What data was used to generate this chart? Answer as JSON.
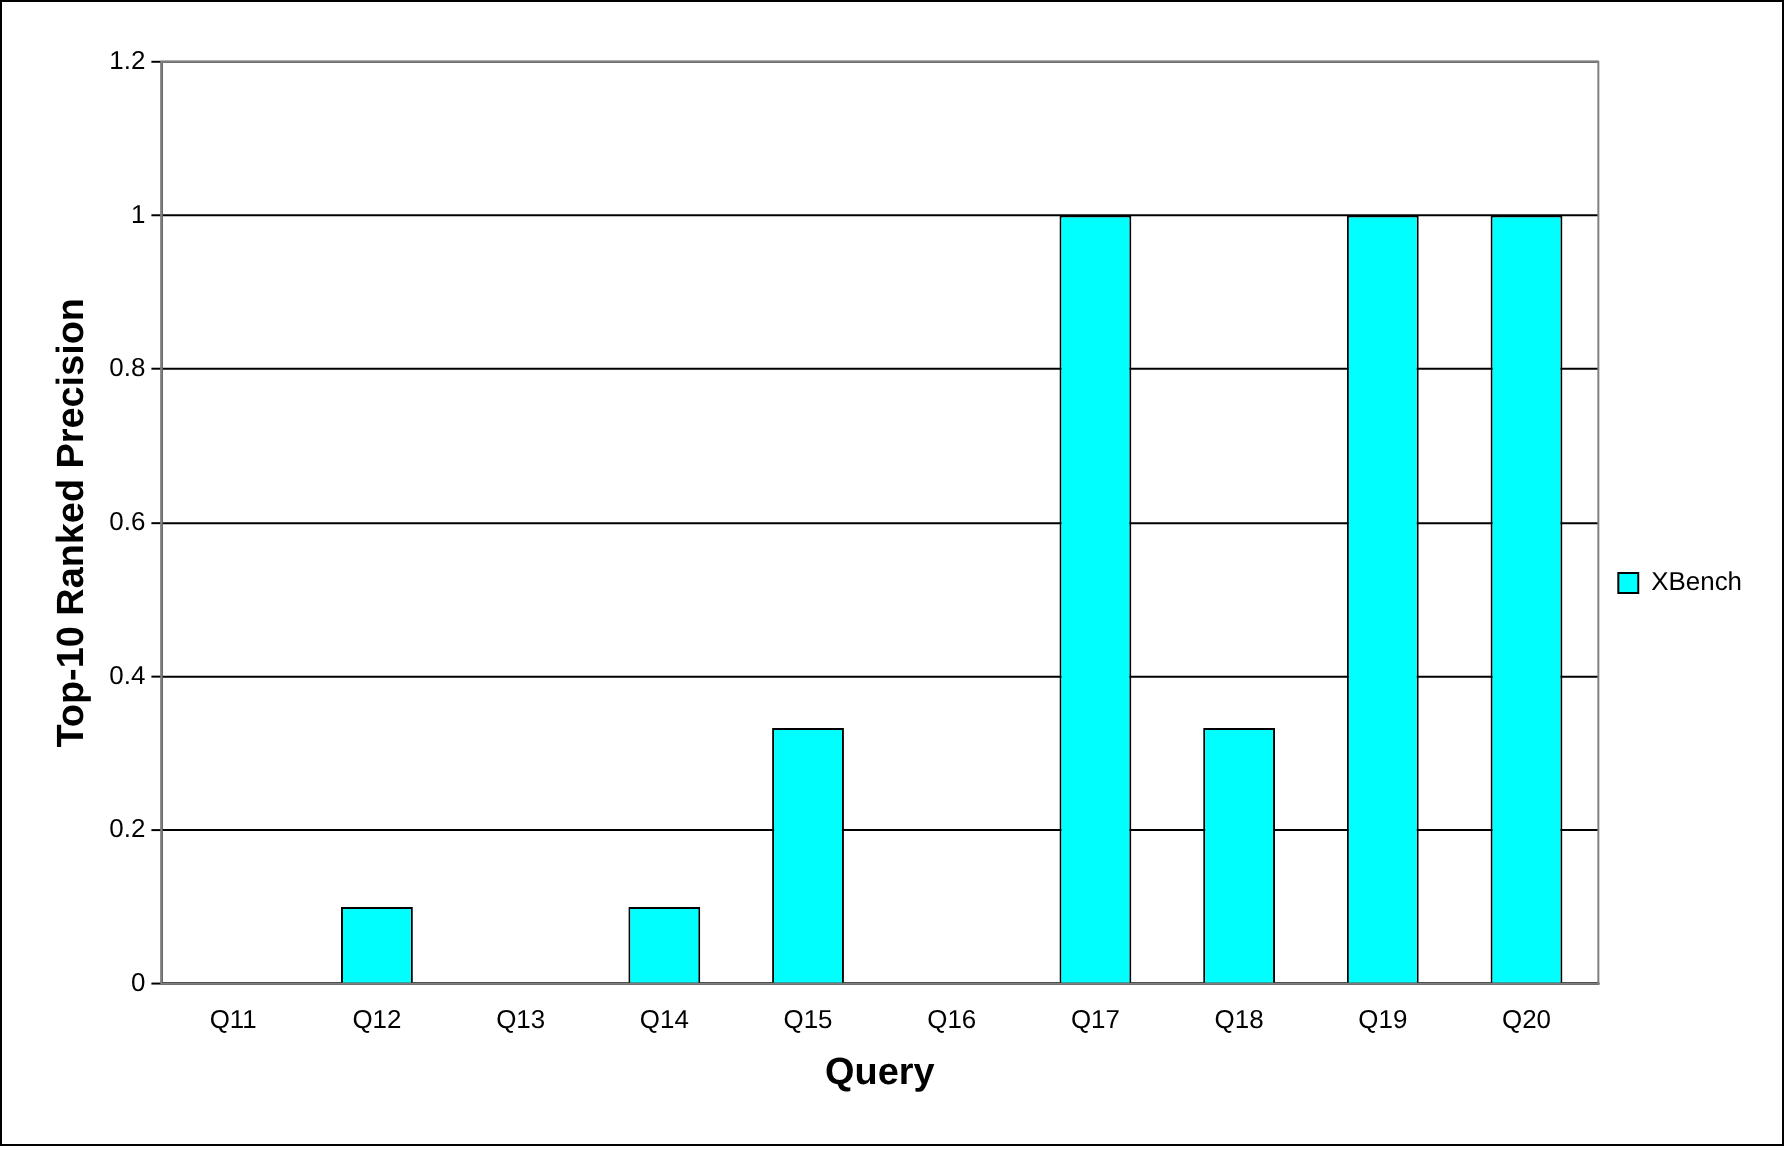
{
  "chart_data": {
    "type": "bar",
    "xlabel": "Query",
    "ylabel": "Top-10 Ranked Precision",
    "categories": [
      "Q11",
      "Q12",
      "Q13",
      "Q14",
      "Q15",
      "Q16",
      "Q17",
      "Q18",
      "Q19",
      "Q20"
    ],
    "series": [
      {
        "name": "XBench",
        "color": "#00ffff",
        "values": [
          0,
          0.1,
          0,
          0.1,
          0.333,
          0,
          1,
          0.333,
          1,
          1
        ]
      }
    ],
    "ylim": [
      0,
      1.2
    ],
    "yticks": [
      0,
      0.2,
      0.4,
      0.6,
      0.8,
      1,
      1.2
    ],
    "grid": "y",
    "legend": "right"
  }
}
